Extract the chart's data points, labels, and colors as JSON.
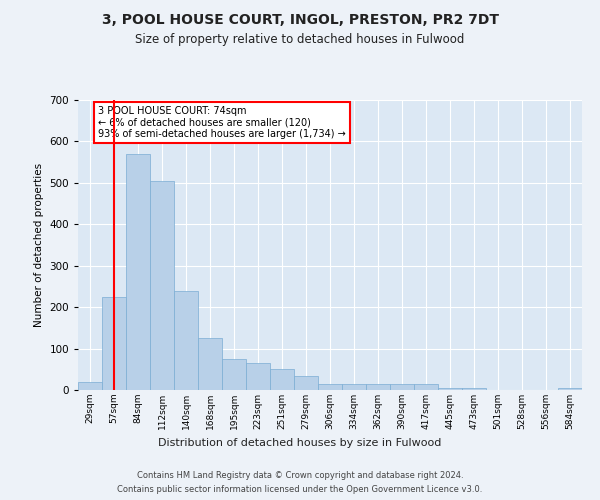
{
  "title": "3, POOL HOUSE COURT, INGOL, PRESTON, PR2 7DT",
  "subtitle": "Size of property relative to detached houses in Fulwood",
  "xlabel": "Distribution of detached houses by size in Fulwood",
  "ylabel": "Number of detached properties",
  "bar_color": "#b8d0e8",
  "bar_edge_color": "#7aadd4",
  "background_color": "#dce8f4",
  "grid_color": "#ffffff",
  "fig_background": "#edf2f8",
  "categories": [
    "29sqm",
    "57sqm",
    "84sqm",
    "112sqm",
    "140sqm",
    "168sqm",
    "195sqm",
    "223sqm",
    "251sqm",
    "279sqm",
    "306sqm",
    "334sqm",
    "362sqm",
    "390sqm",
    "417sqm",
    "445sqm",
    "473sqm",
    "501sqm",
    "528sqm",
    "556sqm",
    "584sqm"
  ],
  "values": [
    20,
    225,
    570,
    505,
    240,
    125,
    75,
    65,
    50,
    35,
    15,
    15,
    15,
    15,
    15,
    5,
    5,
    0,
    0,
    0,
    5
  ],
  "ylim": [
    0,
    700
  ],
  "yticks": [
    0,
    100,
    200,
    300,
    400,
    500,
    600,
    700
  ],
  "red_line_index": 1,
  "annotation_text": "3 POOL HOUSE COURT: 74sqm\n← 6% of detached houses are smaller (120)\n93% of semi-detached houses are larger (1,734) →",
  "footer_line1": "Contains HM Land Registry data © Crown copyright and database right 2024.",
  "footer_line2": "Contains public sector information licensed under the Open Government Licence v3.0."
}
